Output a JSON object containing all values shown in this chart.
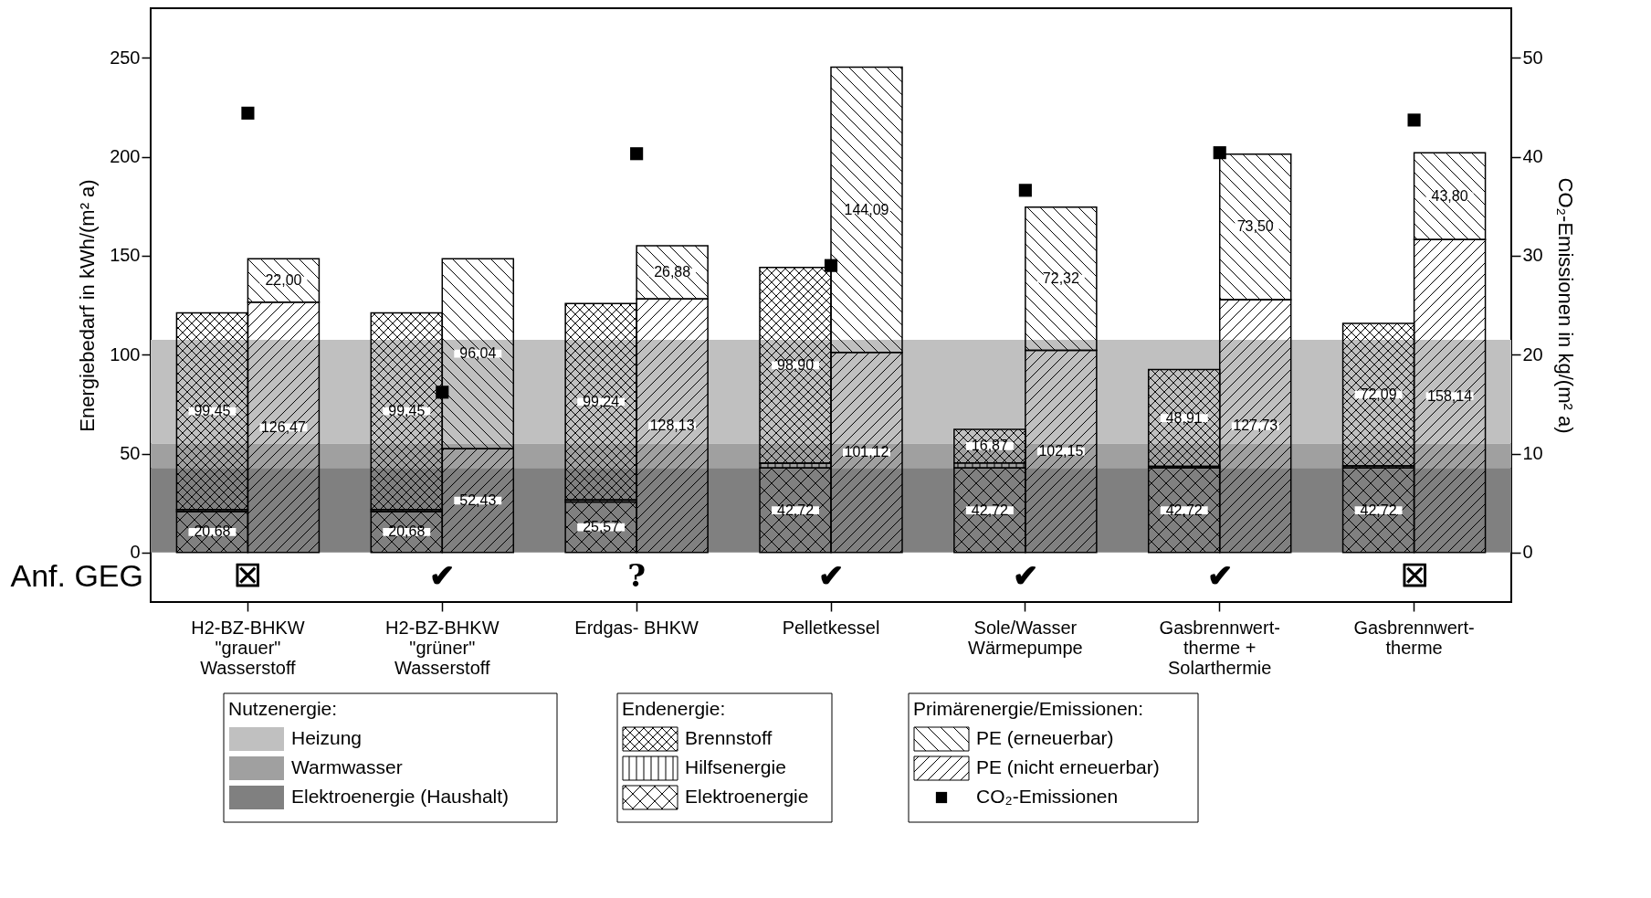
{
  "chart_data": {
    "type": "bar",
    "ylabel": "Energiebedarf in kWh/(m² a)",
    "y2label": "CO₂-Emissionen in kg/(m² a)",
    "categories": [
      null,
      "H2-BZ-BHKW\n\"grauer\"\nWasserstoff",
      null,
      null,
      "H2-BZ-BHKW\n\"grüner\"\nWasserstoff",
      null,
      null,
      "Erdgas- BHKW",
      null,
      null,
      "Pelletkessel",
      null,
      null,
      "Sole/Wasser\nWärmepumpe",
      null,
      null,
      "Gasbrennwert-\ntherme +\nSolarthermie",
      null,
      null,
      "Gasbrennwert-\ntherme",
      null
    ],
    "stacked": true,
    "series": [
      {
        "name": "Elektroenergie",
        "color": "#000000",
        "values": [
          20.68,
          null,
          null,
          20.68,
          null,
          null,
          25.57,
          null,
          null,
          42.72,
          null,
          null,
          42.72,
          null,
          null,
          42.72,
          null,
          null,
          42.72,
          null,
          null
        ],
        "value_labels": [
          "20,68",
          null,
          null,
          "20,68",
          null,
          null,
          "25,57",
          null,
          null,
          "42,72",
          null,
          null,
          "42,72",
          null,
          null,
          "42,72",
          null,
          null,
          "42,72",
          null,
          null
        ]
      },
      {
        "name": "Hilfsenergie",
        "color": "#000000",
        "values": [
          1.0,
          null,
          null,
          1.0,
          null,
          null,
          1.0,
          null,
          null,
          2.4,
          null,
          null,
          2.6,
          null,
          null,
          0.8,
          null,
          null,
          1.0,
          null,
          null
        ]
      },
      {
        "name": "Brennstoff",
        "color": "#000000",
        "values": [
          99.45,
          null,
          null,
          99.45,
          null,
          null,
          99.24,
          null,
          null,
          98.9,
          null,
          null,
          16.87,
          null,
          null,
          48.91,
          null,
          null,
          72.09,
          null,
          null
        ],
        "value_labels": [
          "99,45",
          null,
          null,
          "99,45",
          null,
          null,
          "99,24",
          null,
          null,
          "98,90",
          null,
          null,
          "16,87",
          null,
          null,
          "48,91",
          null,
          null,
          "72,09",
          null,
          null
        ]
      },
      {
        "name": "PE (nicht erneuerbar)",
        "color": "#000000",
        "values": [
          null,
          null,
          126.47,
          null,
          null,
          52.43,
          null,
          null,
          128.13,
          null,
          null,
          101.12,
          null,
          null,
          102.15,
          null,
          null,
          127.73,
          null,
          null,
          158.14
        ],
        "value_labels": [
          null,
          null,
          "126,47",
          null,
          null,
          "52,43",
          null,
          null,
          "128,13",
          null,
          null,
          "101,12",
          null,
          null,
          "102,15",
          null,
          null,
          "127,73",
          null,
          null,
          "158,14"
        ]
      },
      {
        "name": "PE (erneuerbar)",
        "color": "#000000",
        "values": [
          null,
          null,
          22.0,
          null,
          null,
          96.04,
          null,
          null,
          26.88,
          null,
          null,
          144.09,
          null,
          null,
          72.32,
          null,
          null,
          73.5,
          null,
          null,
          43.8
        ],
        "value_labels": [
          null,
          null,
          "22,00",
          null,
          null,
          "96,04",
          null,
          null,
          "26,88",
          null,
          null,
          "144,09",
          null,
          null,
          "72,32",
          null,
          null,
          "73,50",
          null,
          null,
          "43,80"
        ]
      },
      {
        "name": "CO₂-Emissionen",
        "type": "scatter",
        "axis": "y2",
        "color": "#000000",
        "values": [
          null,
          44.4,
          null,
          null,
          16.2,
          null,
          null,
          40.3,
          null,
          null,
          29.0,
          null,
          null,
          36.6,
          null,
          null,
          40.4,
          null,
          null,
          43.7,
          null
        ]
      }
    ],
    "marker": "square",
    "bands": [
      {
        "axis": "y",
        "from": 55,
        "to": 107.5,
        "label": "Heizung",
        "color": "#c0c0c0"
      },
      {
        "axis": "y",
        "from": 42.72,
        "to": 55,
        "label": "Warmwasser",
        "color": "#a0a0a0"
      },
      {
        "axis": "y",
        "from": 0,
        "to": 42.72,
        "label": "Elektroenergie (Haushalt)",
        "color": "#808080"
      }
    ],
    "ylim": [
      -25,
      275
    ],
    "yticks": [
      0,
      50,
      100,
      150,
      200,
      250
    ],
    "y2lim": [
      -5,
      55
    ],
    "y2ticks": [
      0,
      10,
      20,
      30,
      40,
      50
    ],
    "legend": "bottom",
    "annotations": [
      "Anf. GEG",
      "☒",
      "✔",
      "?",
      "✔",
      "✔",
      "✔",
      "☒",
      "Nutzenergie:",
      "Endenergie:",
      "Primärenergie/Emissionen:"
    ]
  }
}
